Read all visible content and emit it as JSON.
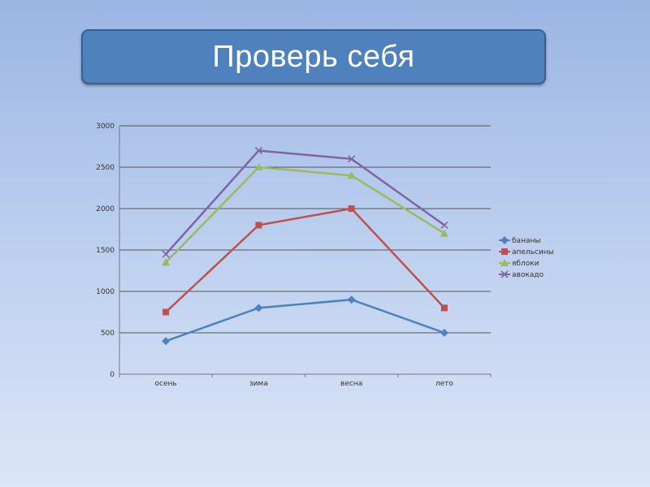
{
  "slide": {
    "title": "Проверь себя"
  },
  "chart_data": {
    "type": "line",
    "categories": [
      "осень",
      "зима",
      "весна",
      "лето"
    ],
    "ylim": [
      0,
      3000
    ],
    "yticks": [
      0,
      500,
      1000,
      1500,
      2000,
      2500,
      3000
    ],
    "grid": true,
    "legend": "right",
    "series": [
      {
        "name": "бананы",
        "values": [
          400,
          800,
          900,
          500
        ],
        "color": "#4f81bd",
        "marker": "diamond"
      },
      {
        "name": "апельсины",
        "values": [
          750,
          1800,
          2000,
          800
        ],
        "color": "#c0504d",
        "marker": "square"
      },
      {
        "name": "яблоки",
        "values": [
          1350,
          2500,
          2400,
          1700
        ],
        "color": "#9bbb59",
        "marker": "triangle"
      },
      {
        "name": "авокадо",
        "values": [
          1450,
          2700,
          2600,
          1800
        ],
        "color": "#8064a2",
        "marker": "x"
      }
    ]
  }
}
